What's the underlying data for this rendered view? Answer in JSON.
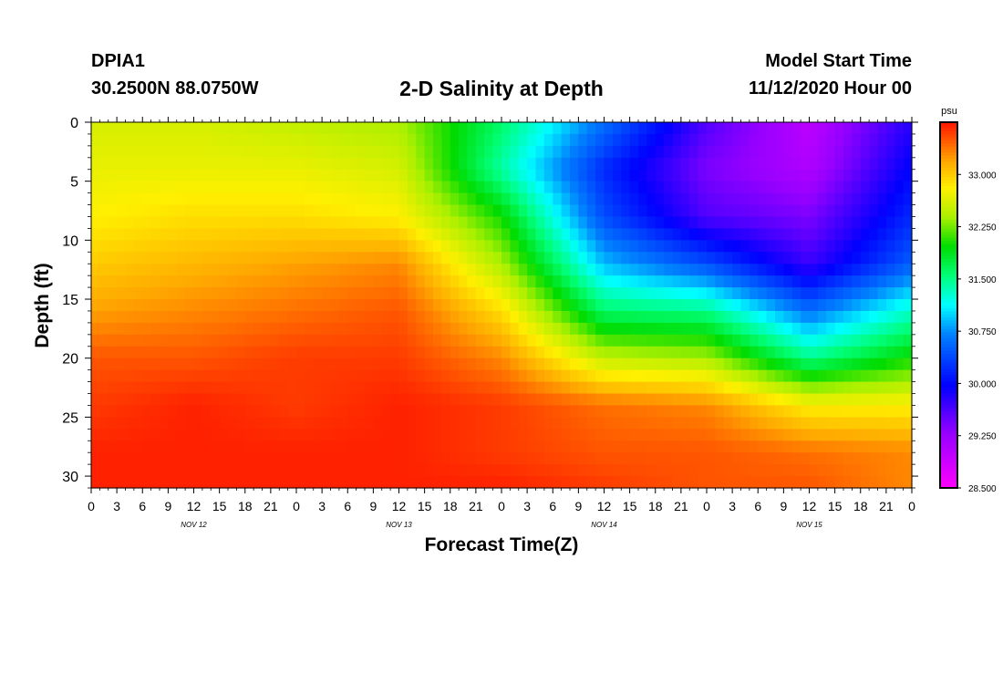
{
  "header": {
    "station": "DPIA1",
    "coords": "30.2500N 88.0750W",
    "title": "2-D Salinity at Depth",
    "model_start_label": "Model Start Time",
    "model_start_time": "11/12/2020 Hour 00"
  },
  "chart_data": {
    "type": "heatmap",
    "title": "2-D Salinity at Depth",
    "xlabel": "Forecast Time(Z)",
    "ylabel": "Depth (ft)",
    "x_hours": [
      0,
      12,
      24,
      36,
      48,
      60,
      72,
      84,
      96
    ],
    "x_tick_labels": [
      "0",
      "3",
      "6",
      "9",
      "12",
      "15",
      "18",
      "21",
      "0",
      "3",
      "6",
      "9",
      "12",
      "15",
      "18",
      "21",
      "0",
      "3",
      "6",
      "9",
      "12",
      "15",
      "18",
      "21",
      "0",
      "3",
      "6",
      "9",
      "12",
      "15",
      "18",
      "21",
      "0"
    ],
    "x_day_labels": [
      "NOV 12",
      "NOV 13",
      "NOV 14",
      "NOV 15"
    ],
    "y_depths": [
      0,
      4,
      8,
      12,
      16,
      20,
      24,
      28,
      31
    ],
    "y_ticks": [
      0,
      5,
      10,
      15,
      20,
      25,
      30
    ],
    "xlim": [
      0,
      96
    ],
    "ylim": [
      0,
      31
    ],
    "colorbar": {
      "unit": "psu",
      "range": [
        28.5,
        33.75
      ],
      "tick_values": [
        33.0,
        32.25,
        31.5,
        30.75,
        30.0,
        29.25,
        28.5
      ],
      "tick_labels": [
        "33.000",
        "32.250",
        "31.500",
        "30.750",
        "30.000",
        "29.250",
        "28.500"
      ]
    },
    "salinity_psu": [
      [
        32.6,
        32.6,
        32.5,
        32.4,
        31.6,
        30.6,
        29.6,
        29.0,
        29.8
      ],
      [
        32.7,
        32.7,
        32.7,
        32.6,
        31.4,
        30.2,
        29.4,
        29.1,
        30.0
      ],
      [
        32.8,
        32.9,
        32.9,
        32.8,
        32.0,
        30.4,
        29.6,
        29.4,
        30.2
      ],
      [
        33.0,
        33.1,
        33.2,
        33.3,
        32.4,
        30.9,
        30.4,
        29.7,
        30.5
      ],
      [
        33.2,
        33.3,
        33.4,
        33.5,
        32.9,
        31.6,
        31.5,
        30.6,
        31.3
      ],
      [
        33.5,
        33.5,
        33.6,
        33.6,
        33.3,
        32.5,
        32.4,
        31.5,
        32.0
      ],
      [
        33.6,
        33.7,
        33.6,
        33.7,
        33.6,
        33.4,
        33.3,
        32.8,
        32.8
      ],
      [
        33.7,
        33.7,
        33.7,
        33.7,
        33.6,
        33.5,
        33.5,
        33.4,
        33.3
      ],
      [
        33.7,
        33.7,
        33.7,
        33.7,
        33.7,
        33.6,
        33.5,
        33.5,
        33.3
      ]
    ]
  }
}
